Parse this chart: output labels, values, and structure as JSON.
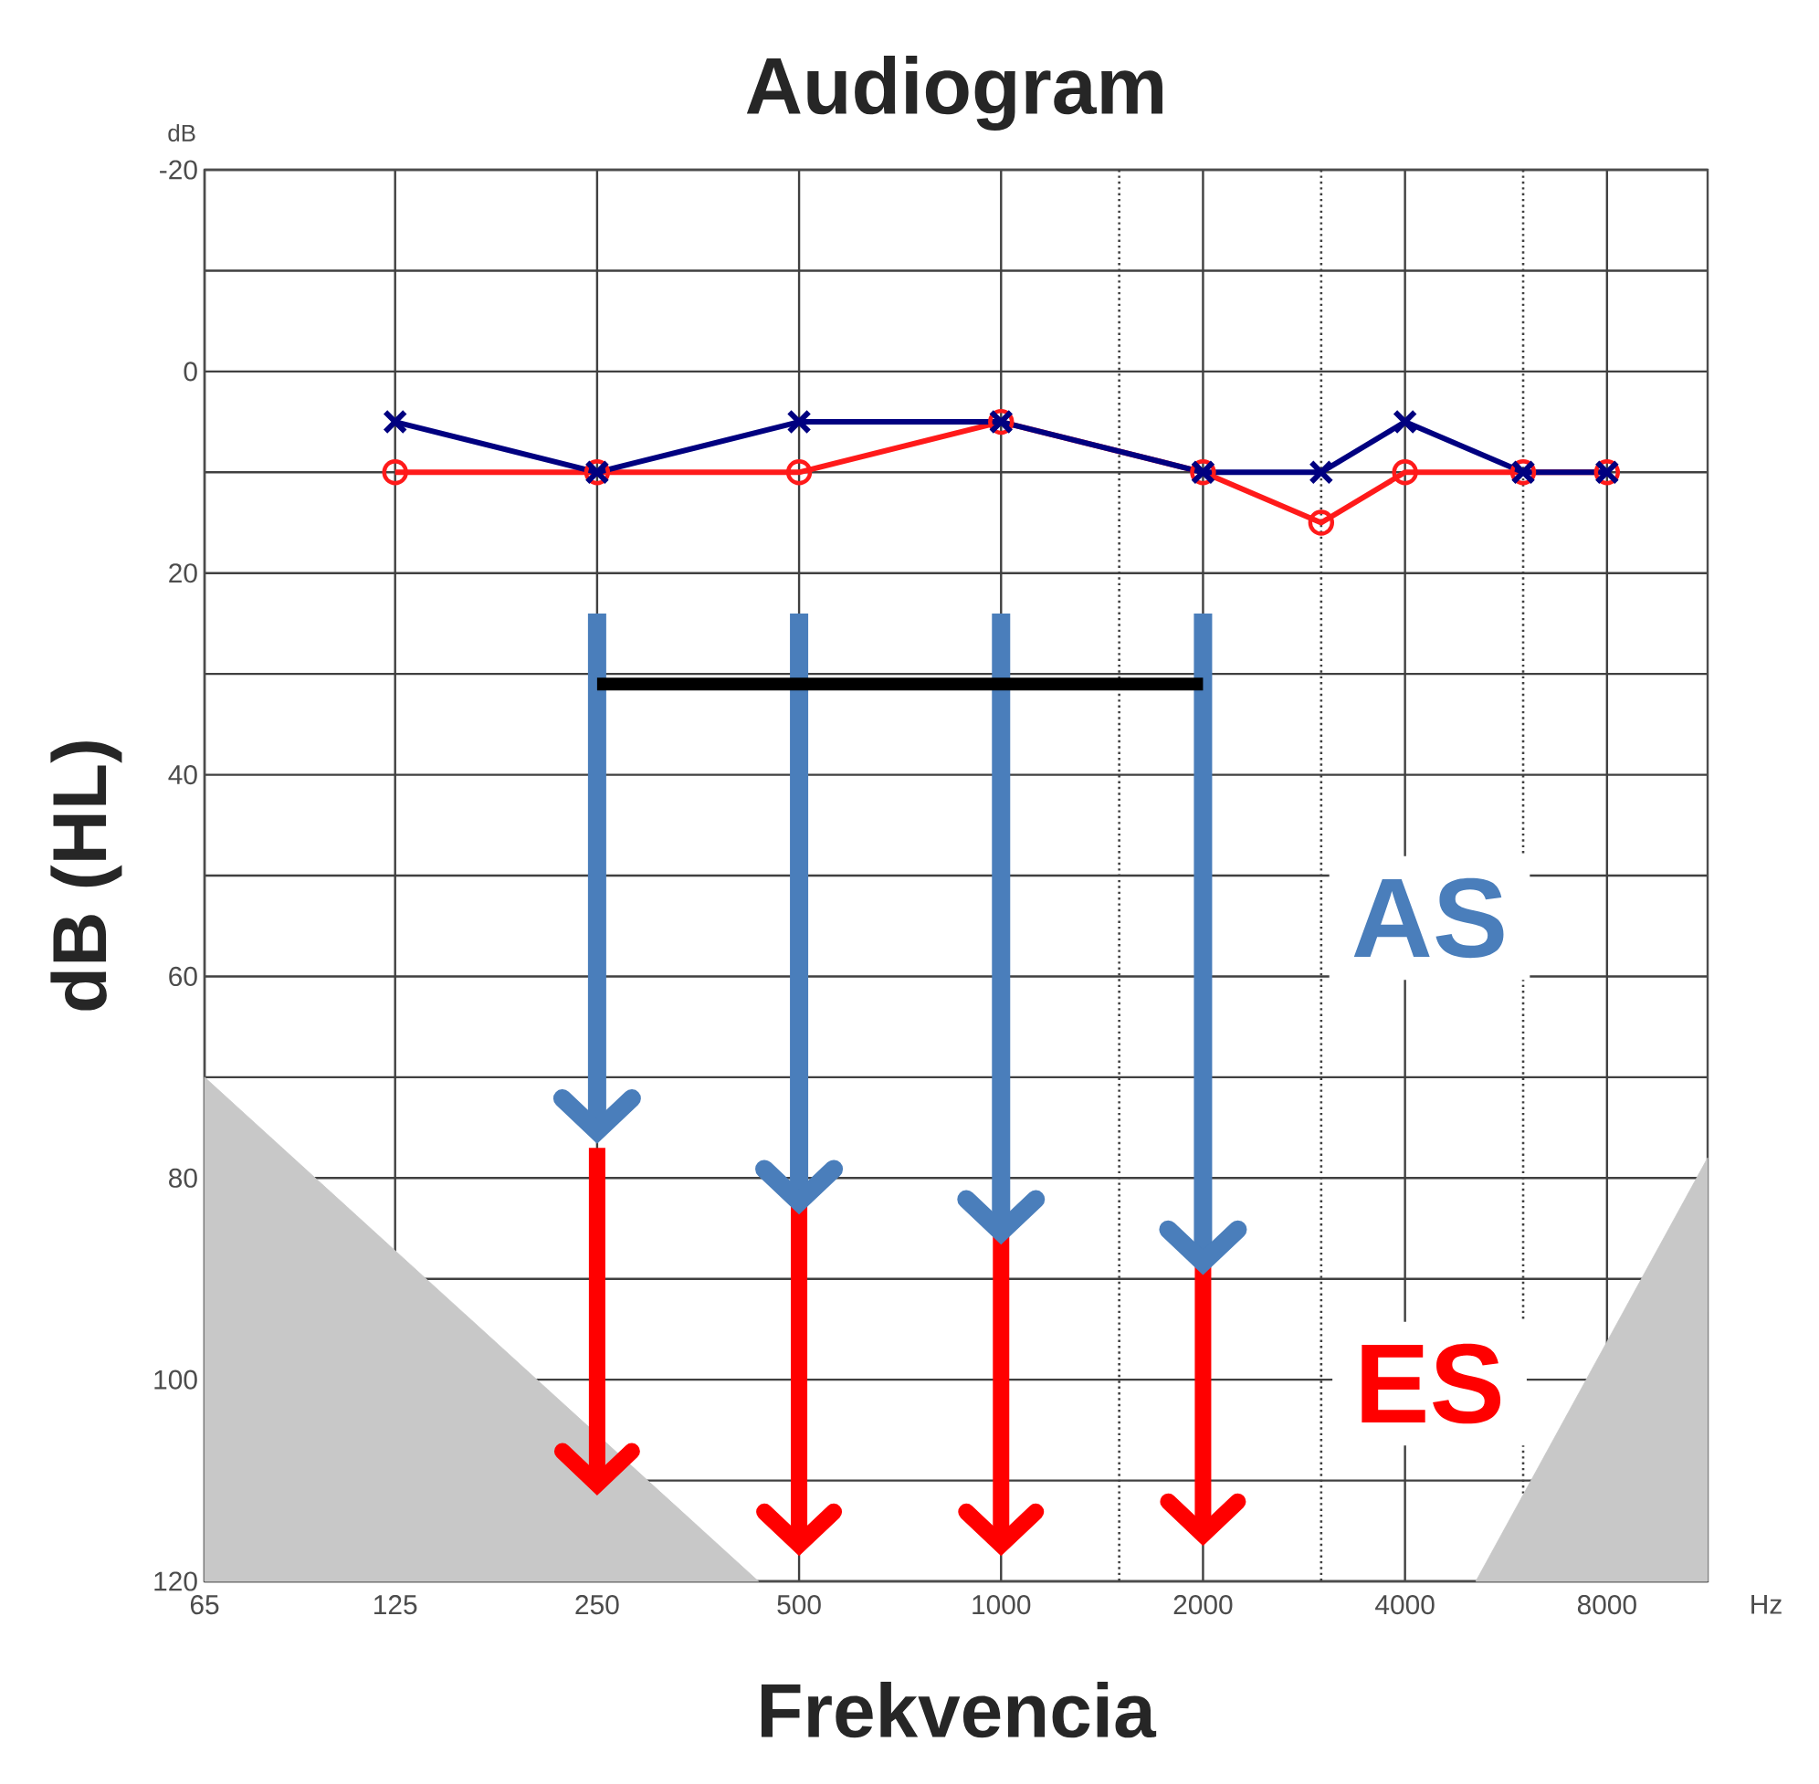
{
  "chart_data": {
    "type": "line",
    "title": "Audiogram",
    "xlabel": "Frekvencia",
    "ylabel": "dB (HL)",
    "log": "x",
    "xlim": [
      65,
      11300
    ],
    "ylim": [
      120,
      -20
    ],
    "xticks": [
      65,
      125,
      250,
      500,
      1000,
      {
        "value": 1500,
        "label": null
      },
      2000,
      {
        "value": 3000,
        "label": null
      },
      4000,
      {
        "value": 6000,
        "label": null
      },
      8000
    ],
    "yticks": [
      -20,
      {
        "value": -10,
        "label": null
      },
      0,
      {
        "value": 10,
        "label": null
      },
      20,
      {
        "value": 30,
        "label": null
      },
      40,
      {
        "value": 50,
        "label": null
      },
      60,
      {
        "value": 70,
        "label": null
      },
      80,
      {
        "value": 90,
        "label": null
      },
      100,
      {
        "value": 110,
        "label": null
      },
      120
    ],
    "grid": true,
    "series": [
      {
        "type": "area",
        "color": "#c8c8c8",
        "x": [
          65,
          435
        ],
        "values": [
          70,
          120
        ]
      },
      {
        "type": "area",
        "color": "#c8c8c8",
        "x": [
          5100,
          11300
        ],
        "values": [
          120,
          78
        ]
      },
      {
        "color": "#4a7ebb",
        "x": [
          250,
          250
        ],
        "values": [
          24,
          75
        ]
      },
      {
        "color": "#4a7ebb",
        "x": [
          500,
          500
        ],
        "values": [
          24,
          82
        ]
      },
      {
        "color": "#4a7ebb",
        "x": [
          1000,
          1000
        ],
        "values": [
          24,
          85
        ]
      },
      {
        "color": "#4a7ebb",
        "x": [
          2000,
          2000
        ],
        "values": [
          24,
          88
        ]
      },
      {
        "color": "#ff0000",
        "x": [
          250,
          250
        ],
        "values": [
          77,
          110
        ]
      },
      {
        "color": "#ff0000",
        "x": [
          500,
          500
        ],
        "values": [
          82,
          116
        ]
      },
      {
        "color": "#ff0000",
        "x": [
          1000,
          1000
        ],
        "values": [
          85,
          116
        ]
      },
      {
        "color": "#ff0000",
        "x": [
          2000,
          2000
        ],
        "values": [
          88,
          115
        ]
      },
      {
        "color": "#000000",
        "x": [
          250,
          2000
        ],
        "values": [
          31,
          31
        ]
      },
      {
        "color": "#ff1a1a",
        "marker": "circle",
        "x": [
          125,
          250,
          500,
          1000,
          2000,
          3000,
          4000,
          6000,
          8000
        ],
        "values": [
          10,
          10,
          10,
          5,
          10,
          15,
          10,
          10,
          10
        ]
      },
      {
        "color": "#000080",
        "marker": "cross",
        "x": [
          125,
          250,
          500,
          1000,
          2000,
          3000,
          4000,
          6000,
          8000
        ],
        "values": [
          5,
          10,
          5,
          5,
          10,
          10,
          5,
          10,
          10
        ]
      }
    ],
    "annotations": [
      "dB",
      "Hz",
      "AS",
      "ES"
    ]
  }
}
